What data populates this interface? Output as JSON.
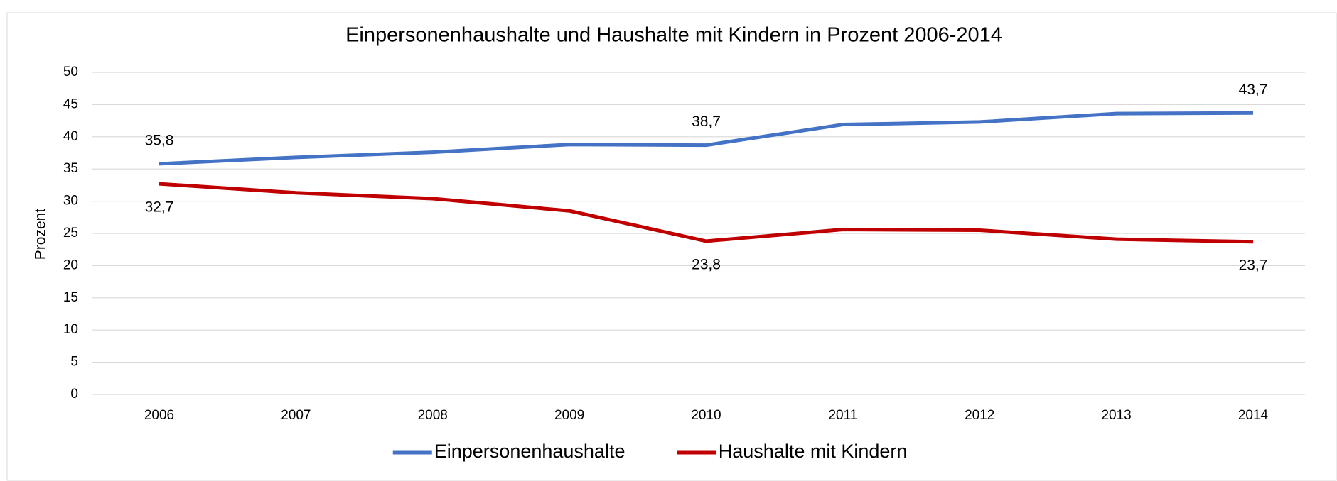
{
  "chart_data": {
    "type": "line",
    "title": "Einpersonenhaushalte und Haushalte mit Kindern in Prozent 2006-2014",
    "ylabel": "Prozent",
    "categories": [
      "2006",
      "2007",
      "2008",
      "2009",
      "2010",
      "2011",
      "2012",
      "2013",
      "2014"
    ],
    "series": [
      {
        "name": "Einpersonenhaushalte",
        "color": "#4472c4",
        "values": [
          35.8,
          36.8,
          37.6,
          38.8,
          38.7,
          41.9,
          42.3,
          43.6,
          43.7
        ],
        "value_labels": [
          "35,8",
          null,
          null,
          null,
          "38,7",
          null,
          null,
          null,
          "43,7"
        ]
      },
      {
        "name": "Haushalte mit Kindern",
        "color": "#c00000",
        "values": [
          32.7,
          31.3,
          30.4,
          28.5,
          23.8,
          25.6,
          25.5,
          24.1,
          23.7
        ],
        "value_labels": [
          "32,7",
          null,
          null,
          null,
          "23,8",
          null,
          null,
          null,
          "23,7"
        ]
      }
    ],
    "ylim": [
      0,
      50
    ],
    "yticks": [
      0,
      5,
      10,
      15,
      20,
      25,
      30,
      35,
      40,
      45,
      50
    ],
    "grid": true,
    "legend": "bottom"
  }
}
